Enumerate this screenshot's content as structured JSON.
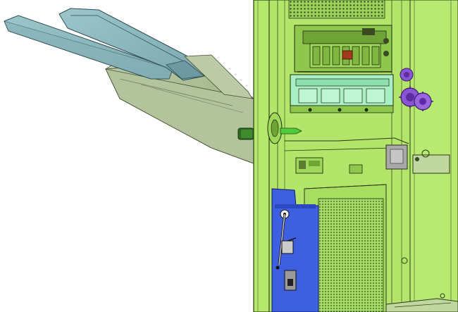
{
  "figure": {
    "kind": "cad-render",
    "subject": "finisher-unit-with-output-trays",
    "colors": {
      "background": "#ffffff",
      "frame_green": "#b6e86e",
      "frame_green_dark": "#8fc64e",
      "frame_edge": "#2a3a14",
      "tray_blue": "#8fb9bf",
      "tray_blue_dark": "#6e99a0",
      "tray_gray_green": "#a9bd95",
      "mint_module": "#a8f0c4",
      "purple_gear": "#8a55d4",
      "purple_gear_dark": "#5b2ea0",
      "blue_plate": "#3d5fe0",
      "gray_part": "#a9a9a9",
      "mesh_dark": "#3b4a22"
    }
  }
}
